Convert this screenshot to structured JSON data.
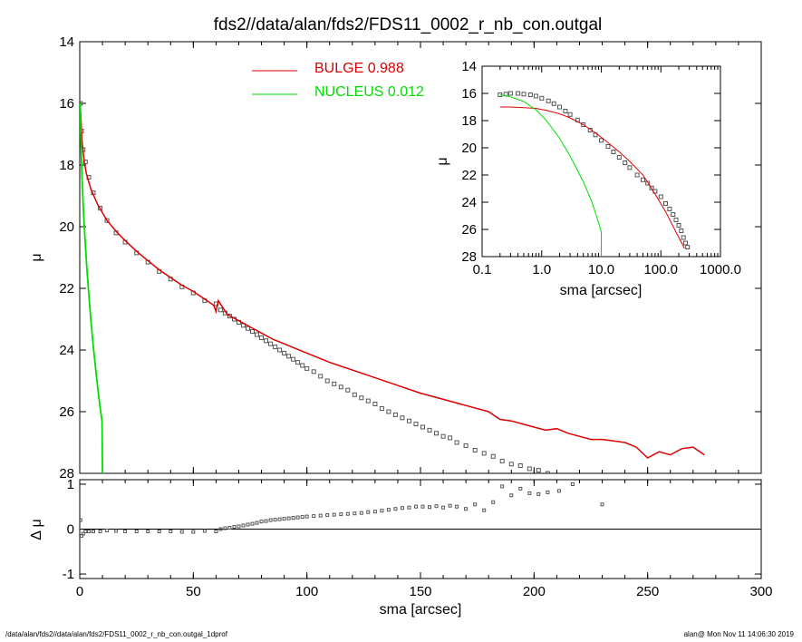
{
  "title": "fds2//data/alan/fds2/FDS11_0002_r_nb_con.outgal",
  "footer_left": "/data/alan/fds2//data/alan/fds2/FDS11_0002_r_nb_con.outgal_1dprof",
  "footer_right": "alan@  Mon Nov 11 14:06:30 2019",
  "colors": {
    "bulge": "#dd0000",
    "nucleus": "#00dd00",
    "data": "#555555",
    "axes": "#000000"
  },
  "chart_data": [
    {
      "id": "main-profile",
      "type": "line",
      "xlim": [
        0,
        300
      ],
      "ylim": [
        28,
        14
      ],
      "y_inverted": true,
      "ylabel": "μ",
      "xticks": [
        0,
        50,
        100,
        150,
        200,
        250,
        300
      ],
      "xtick_labels": [
        "",
        "",
        "",
        "",
        "",
        "",
        ""
      ],
      "yticks": [
        14,
        16,
        18,
        20,
        22,
        24,
        26,
        28
      ],
      "ytick_labels": [
        "14",
        "16",
        "18",
        "20",
        "22",
        "24",
        "26",
        "28"
      ],
      "legend_position": "top-center",
      "series": [
        {
          "name": "BULGE",
          "label": "BULGE  0.988",
          "fraction": 0.988,
          "color": "#dd0000",
          "style": "line",
          "x": [
            0.2,
            1,
            2,
            3,
            5,
            8,
            12,
            16,
            20,
            25,
            30,
            35,
            40,
            45,
            50,
            55,
            59,
            60,
            61,
            65,
            70,
            75,
            80,
            85,
            90,
            95,
            100,
            110,
            120,
            130,
            140,
            150,
            160,
            170,
            180,
            185,
            190,
            195,
            200,
            205,
            210,
            215,
            220,
            225,
            230,
            235,
            240,
            245,
            250,
            255,
            260,
            265,
            270,
            275
          ],
          "y": [
            16.0,
            17.2,
            17.9,
            18.3,
            18.8,
            19.3,
            19.8,
            20.15,
            20.45,
            20.8,
            21.1,
            21.4,
            21.65,
            21.9,
            22.1,
            22.35,
            22.55,
            22.75,
            22.4,
            22.85,
            23.05,
            23.25,
            23.45,
            23.65,
            23.8,
            23.95,
            24.1,
            24.4,
            24.65,
            24.9,
            25.15,
            25.4,
            25.6,
            25.8,
            26.0,
            26.25,
            26.3,
            26.4,
            26.5,
            26.6,
            26.55,
            26.7,
            26.8,
            26.9,
            26.9,
            26.95,
            27.0,
            27.15,
            27.5,
            27.3,
            27.4,
            27.2,
            27.15,
            27.4
          ]
        },
        {
          "name": "NUCLEUS",
          "label": "NUCLEUS  0.012",
          "fraction": 0.012,
          "color": "#00dd00",
          "style": "line",
          "x": [
            0.2,
            0.5,
            1,
            1.5,
            2,
            3,
            4,
            5,
            6,
            7,
            8,
            9,
            9.8,
            10
          ],
          "y": [
            16.0,
            17.2,
            18.4,
            19.3,
            20.0,
            21.2,
            22.2,
            23.1,
            23.9,
            24.6,
            25.3,
            25.9,
            26.3,
            28.0
          ]
        },
        {
          "name": "data",
          "color": "#555555",
          "style": "markers",
          "x": [
            0.3,
            0.8,
            1.5,
            2.5,
            4,
            6,
            9,
            12,
            16,
            20,
            25,
            30,
            35,
            40,
            45,
            50,
            55,
            60,
            62,
            64,
            66,
            68,
            70,
            72,
            74,
            76,
            78,
            80,
            82,
            84,
            86,
            88,
            90,
            92,
            94,
            96,
            98,
            100,
            103,
            106,
            109,
            112,
            115,
            118,
            121,
            124,
            127,
            130,
            133,
            136,
            139,
            142,
            145,
            148,
            151,
            154,
            157,
            160,
            163,
            166,
            170,
            174,
            178,
            182,
            186,
            190,
            194,
            198,
            202,
            206,
            211,
            217,
            230,
            235
          ],
          "y": [
            16.0,
            16.9,
            17.5,
            17.9,
            18.4,
            18.9,
            19.4,
            19.8,
            20.2,
            20.5,
            20.85,
            21.15,
            21.45,
            21.7,
            21.95,
            22.15,
            22.4,
            22.5,
            22.7,
            22.8,
            22.9,
            23.0,
            23.1,
            23.2,
            23.3,
            23.4,
            23.5,
            23.6,
            23.7,
            23.8,
            23.9,
            24.0,
            24.1,
            24.2,
            24.3,
            24.4,
            24.5,
            24.6,
            24.7,
            24.85,
            25.0,
            25.1,
            25.2,
            25.3,
            25.45,
            25.55,
            25.65,
            25.75,
            25.9,
            26.0,
            26.1,
            26.2,
            26.3,
            26.4,
            26.5,
            26.6,
            26.7,
            26.8,
            26.85,
            27.0,
            27.1,
            27.25,
            27.35,
            27.45,
            27.6,
            27.7,
            27.75,
            27.85,
            27.9,
            28.0,
            28.1,
            28.2,
            28.3,
            28.4
          ]
        }
      ]
    },
    {
      "id": "residuals",
      "type": "scatter",
      "xlim": [
        0,
        300
      ],
      "ylim": [
        -1.1,
        1.1
      ],
      "xlabel": "sma [arcsec]",
      "ylabel": "Δ μ",
      "xticks": [
        0,
        50,
        100,
        150,
        200,
        250,
        300
      ],
      "xtick_labels": [
        "0",
        "50",
        "100",
        "150",
        "200",
        "250",
        "300"
      ],
      "yticks": [
        -1,
        0,
        1
      ],
      "ytick_labels": [
        "-1",
        "0",
        "1"
      ],
      "zero_line": true,
      "series": [
        {
          "name": "residuals",
          "color": "#555555",
          "x": [
            0.3,
            0.8,
            1.5,
            2.5,
            4,
            6,
            9,
            12,
            16,
            20,
            25,
            30,
            35,
            40,
            45,
            50,
            55,
            60,
            62,
            64,
            66,
            68,
            70,
            72,
            74,
            76,
            78,
            80,
            82,
            84,
            86,
            88,
            90,
            92,
            94,
            96,
            98,
            100,
            103,
            106,
            109,
            112,
            115,
            118,
            121,
            124,
            127,
            130,
            133,
            136,
            139,
            142,
            145,
            148,
            151,
            154,
            157,
            160,
            163,
            166,
            170,
            174,
            178,
            182,
            186,
            190,
            194,
            198,
            202,
            206,
            211,
            217,
            230
          ],
          "y": [
            0.2,
            -0.15,
            -0.1,
            -0.05,
            -0.05,
            -0.05,
            -0.05,
            -0.03,
            -0.04,
            -0.05,
            -0.05,
            -0.05,
            -0.05,
            -0.05,
            -0.06,
            -0.06,
            -0.04,
            -0.05,
            0.0,
            0.02,
            0.03,
            0.05,
            0.06,
            0.08,
            0.1,
            0.12,
            0.14,
            0.17,
            0.18,
            0.2,
            0.21,
            0.22,
            0.23,
            0.24,
            0.25,
            0.26,
            0.27,
            0.28,
            0.29,
            0.3,
            0.31,
            0.32,
            0.33,
            0.34,
            0.35,
            0.36,
            0.38,
            0.39,
            0.41,
            0.43,
            0.45,
            0.47,
            0.48,
            0.5,
            0.5,
            0.49,
            0.51,
            0.48,
            0.52,
            0.5,
            0.45,
            0.55,
            0.42,
            0.6,
            0.95,
            0.75,
            0.9,
            0.8,
            0.78,
            0.82,
            0.85,
            1.0,
            0.55
          ]
        }
      ]
    },
    {
      "id": "inset-log-profile",
      "type": "line",
      "xscale": "log",
      "xlim": [
        0.1,
        1000
      ],
      "ylim": [
        28,
        14
      ],
      "y_inverted": true,
      "xlabel": "sma [arcsec]",
      "ylabel": "μ",
      "xticks": [
        0.1,
        1,
        10,
        100,
        1000
      ],
      "xtick_labels": [
        "0.1",
        "1.0",
        "10.0",
        "100.0",
        "1000.0"
      ],
      "yticks": [
        14,
        16,
        18,
        20,
        22,
        24,
        26,
        28
      ],
      "ytick_labels": [
        "14",
        "16",
        "18",
        "20",
        "22",
        "24",
        "26",
        "28"
      ],
      "series": [
        {
          "name": "BULGE",
          "color": "#dd0000",
          "x": [
            0.2,
            0.3,
            0.5,
            0.8,
            1.2,
            2,
            3,
            5,
            8,
            12,
            20,
            30,
            50,
            80,
            120,
            180,
            250
          ],
          "y": [
            17.0,
            17.0,
            17.05,
            17.1,
            17.25,
            17.5,
            17.8,
            18.3,
            18.9,
            19.5,
            20.3,
            21.0,
            22.0,
            23.4,
            24.7,
            26.2,
            27.4
          ]
        },
        {
          "name": "NUCLEUS",
          "color": "#00dd00",
          "x": [
            0.2,
            0.3,
            0.5,
            0.8,
            1.2,
            2,
            3,
            5,
            7,
            9,
            10,
            10
          ],
          "y": [
            16.1,
            16.25,
            16.6,
            17.2,
            18.0,
            19.3,
            20.6,
            22.5,
            24.0,
            25.5,
            26.2,
            28.0
          ]
        },
        {
          "name": "data",
          "color": "#555555",
          "x": [
            0.2,
            0.25,
            0.3,
            0.4,
            0.5,
            0.65,
            0.8,
            1.0,
            1.3,
            1.6,
            2,
            2.5,
            3,
            4,
            5,
            6.5,
            8,
            10,
            13,
            16,
            20,
            25,
            30,
            40,
            50,
            60,
            70,
            80,
            100,
            120,
            140,
            160,
            180,
            200,
            220,
            240,
            260,
            280
          ],
          "y": [
            16.1,
            16.05,
            16.0,
            16.0,
            16.05,
            16.1,
            16.2,
            16.35,
            16.55,
            16.75,
            17.0,
            17.3,
            17.55,
            17.95,
            18.3,
            18.7,
            19.05,
            19.45,
            19.9,
            20.3,
            20.7,
            21.1,
            21.45,
            22.0,
            22.35,
            22.6,
            22.95,
            23.2,
            23.6,
            24.1,
            24.5,
            24.9,
            25.3,
            25.7,
            26.1,
            26.6,
            27.0,
            27.3
          ]
        }
      ]
    }
  ]
}
